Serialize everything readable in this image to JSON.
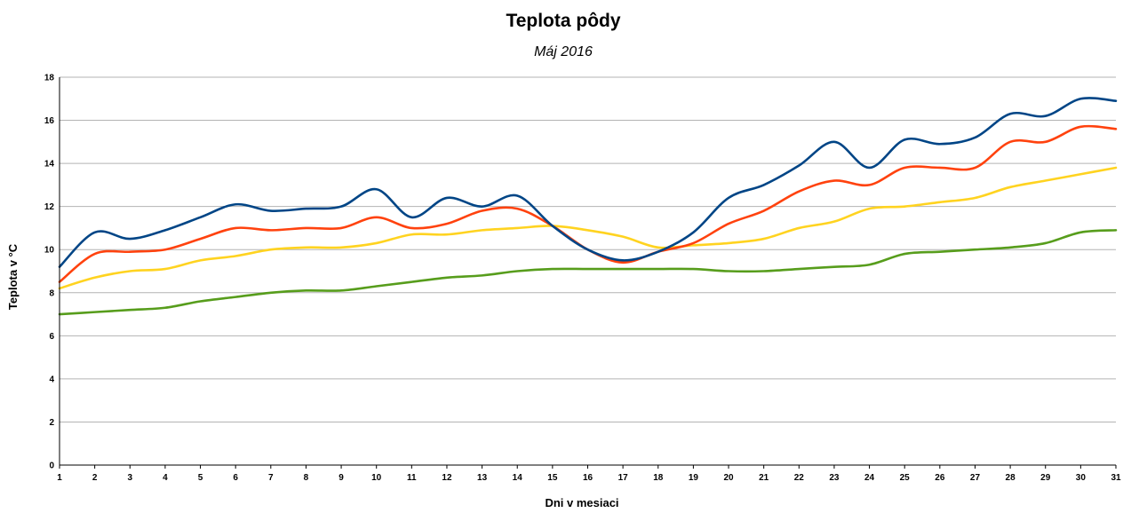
{
  "chart_data": {
    "type": "line",
    "title": "Teplota pôdy",
    "subtitle": "Máj 2016",
    "xlabel": "Dni v mesiaci",
    "ylabel": "Teplota v °C",
    "x": [
      1,
      2,
      3,
      4,
      5,
      6,
      7,
      8,
      9,
      10,
      11,
      12,
      13,
      14,
      15,
      16,
      17,
      18,
      19,
      20,
      21,
      22,
      23,
      24,
      25,
      26,
      27,
      28,
      29,
      30,
      31
    ],
    "ylim": [
      0,
      18
    ],
    "yticks": [
      0,
      2,
      4,
      6,
      8,
      10,
      12,
      14,
      16,
      18
    ],
    "grid": true,
    "smooth": true,
    "series": [
      {
        "color": "#004586",
        "values": [
          9.2,
          10.8,
          10.5,
          10.9,
          11.5,
          12.1,
          11.8,
          11.9,
          12.0,
          12.8,
          11.5,
          12.4,
          12.0,
          12.5,
          11.1,
          10.0,
          9.5,
          9.9,
          10.8,
          12.4,
          13.0,
          13.9,
          15.0,
          13.8,
          15.1,
          14.9,
          15.2,
          16.3,
          16.2,
          17.0,
          16.9
        ]
      },
      {
        "color": "#ff420e",
        "values": [
          8.5,
          9.8,
          9.9,
          10.0,
          10.5,
          11.0,
          10.9,
          11.0,
          11.0,
          11.5,
          11.0,
          11.2,
          11.8,
          11.9,
          11.1,
          10.0,
          9.4,
          9.9,
          10.3,
          11.2,
          11.8,
          12.7,
          13.2,
          13.0,
          13.8,
          13.8,
          13.8,
          15.0,
          15.0,
          15.7,
          15.6
        ]
      },
      {
        "color": "#ffd320",
        "values": [
          8.2,
          8.7,
          9.0,
          9.1,
          9.5,
          9.7,
          10.0,
          10.1,
          10.1,
          10.3,
          10.7,
          10.7,
          10.9,
          11.0,
          11.1,
          10.9,
          10.6,
          10.1,
          10.2,
          10.3,
          10.5,
          11.0,
          11.3,
          11.9,
          12.0,
          12.2,
          12.4,
          12.9,
          13.2,
          13.5,
          13.8
        ]
      },
      {
        "color": "#579d1c",
        "values": [
          7.0,
          7.1,
          7.2,
          7.3,
          7.6,
          7.8,
          8.0,
          8.1,
          8.1,
          8.3,
          8.5,
          8.7,
          8.8,
          9.0,
          9.1,
          9.1,
          9.1,
          9.1,
          9.1,
          9.0,
          9.0,
          9.1,
          9.2,
          9.3,
          9.8,
          9.9,
          10.0,
          10.1,
          10.3,
          10.8,
          10.9
        ]
      }
    ]
  }
}
